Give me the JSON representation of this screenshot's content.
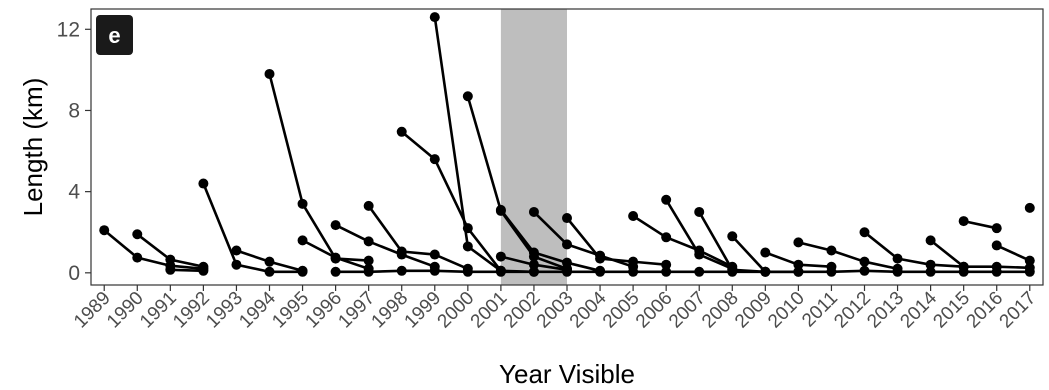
{
  "chart_data": {
    "type": "line",
    "panel_label": "e",
    "xlabel": "Year Visible",
    "ylabel": "Length (km)",
    "xlim": [
      1988.6,
      2017.4
    ],
    "ylim": [
      -0.6,
      13
    ],
    "x_ticks": [
      1989,
      1990,
      1991,
      1992,
      1993,
      1994,
      1995,
      1996,
      1997,
      1998,
      1999,
      2000,
      2001,
      2002,
      2003,
      2004,
      2005,
      2006,
      2007,
      2008,
      2009,
      2010,
      2011,
      2012,
      2013,
      2014,
      2015,
      2016,
      2017
    ],
    "y_ticks": [
      0,
      4,
      8,
      12
    ],
    "highlight_band": {
      "x_start": 2001,
      "x_end": 2003,
      "color": "#bebebe"
    },
    "grid": false,
    "series": [
      {
        "x": [
          1989,
          1990,
          1991,
          1992
        ],
        "y": [
          2.1,
          0.75,
          0.35,
          0.2
        ]
      },
      {
        "x": [
          1990,
          1991,
          1992
        ],
        "y": [
          1.9,
          0.65,
          0.3
        ]
      },
      {
        "x": [
          1991,
          1992
        ],
        "y": [
          0.15,
          0.1
        ]
      },
      {
        "x": [
          1992,
          1993,
          1994,
          1995
        ],
        "y": [
          4.4,
          0.4,
          0.05,
          0.05
        ]
      },
      {
        "x": [
          1993,
          1994,
          1995
        ],
        "y": [
          1.1,
          0.55,
          0.1
        ]
      },
      {
        "x": [
          1994,
          1995,
          1996,
          1997
        ],
        "y": [
          9.8,
          3.4,
          0.7,
          0.6
        ]
      },
      {
        "x": [
          1995,
          1996,
          1997
        ],
        "y": [
          1.6,
          0.75,
          0.2
        ]
      },
      {
        "x": [
          1996,
          1997,
          1998,
          1999
        ],
        "y": [
          2.35,
          1.55,
          0.9,
          0.3
        ]
      },
      {
        "x": [
          1997,
          1998,
          1999,
          2000
        ],
        "y": [
          3.3,
          1.05,
          0.9,
          0.2
        ]
      },
      {
        "x": [
          1998,
          1999,
          2000,
          2001
        ],
        "y": [
          6.95,
          5.6,
          2.2,
          0.1
        ]
      },
      {
        "x": [
          1999,
          2000,
          2001,
          2002
        ],
        "y": [
          12.6,
          1.3,
          0.1,
          0.05
        ]
      },
      {
        "x": [
          2000,
          2001,
          2002,
          2003
        ],
        "y": [
          8.7,
          3.05,
          0.8,
          0.2
        ]
      },
      {
        "x": [
          2001,
          2002,
          2003,
          2004
        ],
        "y": [
          3.1,
          1.0,
          0.5,
          0.1
        ]
      },
      {
        "x": [
          2001,
          2002,
          2003
        ],
        "y": [
          0.8,
          0.4,
          0.15
        ]
      },
      {
        "x": [
          2002,
          2003,
          2004,
          2005
        ],
        "y": [
          3.0,
          1.4,
          0.85,
          0.3
        ]
      },
      {
        "x": [
          2003,
          2004,
          2005,
          2006
        ],
        "y": [
          2.7,
          0.7,
          0.55,
          0.4
        ]
      },
      {
        "x": [
          2005,
          2006,
          2007,
          2008
        ],
        "y": [
          2.8,
          1.75,
          1.1,
          0.3
        ]
      },
      {
        "x": [
          2006,
          2007,
          2008
        ],
        "y": [
          3.6,
          0.9,
          0.2
        ]
      },
      {
        "x": [
          2007,
          2008,
          2009
        ],
        "y": [
          3.0,
          0.15,
          0.05
        ]
      },
      {
        "x": [
          2008,
          2009,
          2010
        ],
        "y": [
          1.8,
          0.05,
          0.05
        ]
      },
      {
        "x": [
          2009,
          2010,
          2011
        ],
        "y": [
          1.0,
          0.4,
          0.3
        ]
      },
      {
        "x": [
          2010,
          2011,
          2012,
          2013
        ],
        "y": [
          1.5,
          1.1,
          0.55,
          0.2
        ]
      },
      {
        "x": [
          2012,
          2013,
          2014,
          2015
        ],
        "y": [
          2.0,
          0.7,
          0.4,
          0.3
        ]
      },
      {
        "x": [
          2014,
          2015,
          2016,
          2017
        ],
        "y": [
          1.6,
          0.3,
          0.3,
          0.25
        ]
      },
      {
        "x": [
          2015,
          2016
        ],
        "y": [
          2.55,
          2.2
        ]
      },
      {
        "x": [
          2016,
          2017
        ],
        "y": [
          1.35,
          0.6
        ]
      },
      {
        "x": [
          2017
        ],
        "y": [
          3.2
        ]
      },
      {
        "x": [
          1996,
          1997,
          1998,
          1999,
          2000,
          2001,
          2002,
          2003,
          2004,
          2005,
          2006,
          2007,
          2008,
          2009,
          2010,
          2011,
          2012,
          2013,
          2014,
          2015,
          2016,
          2017
        ],
        "y": [
          0.05,
          0.05,
          0.1,
          0.1,
          0.05,
          0.05,
          0.05,
          0.05,
          0.05,
          0.05,
          0.05,
          0.05,
          0.05,
          0.05,
          0.05,
          0.05,
          0.1,
          0.05,
          0.05,
          0.05,
          0.05,
          0.05
        ]
      }
    ]
  }
}
